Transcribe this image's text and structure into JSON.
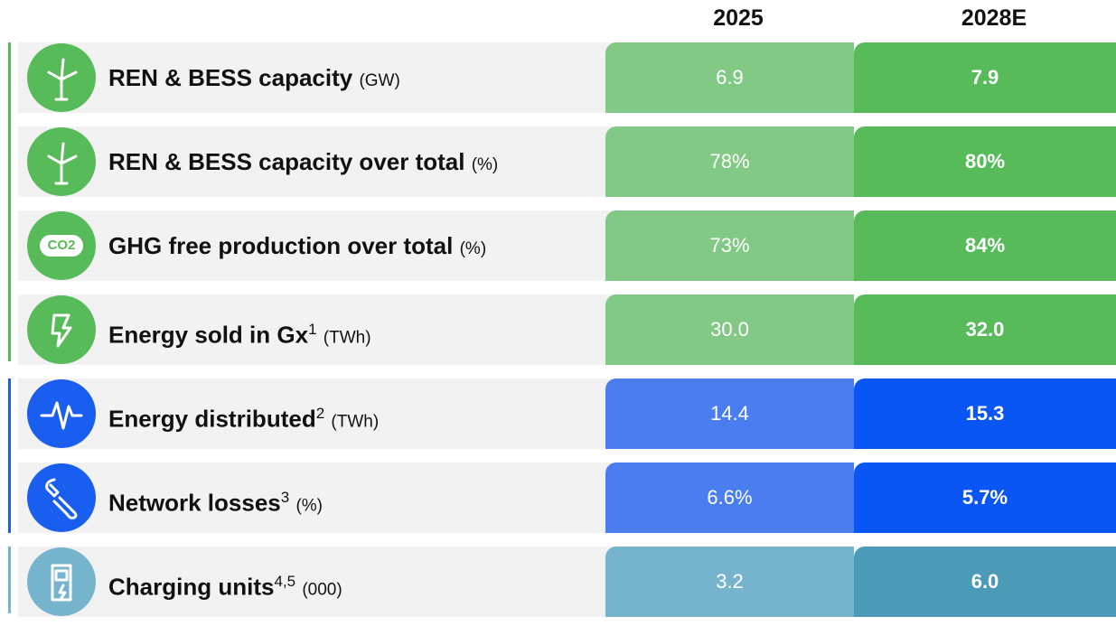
{
  "header": {
    "columns": [
      "2025",
      "2028E"
    ]
  },
  "rows": [
    {
      "label": "REN & BESS capacity",
      "unit": "(GW)",
      "values": [
        "6.9",
        "7.9"
      ]
    },
    {
      "label": "REN & BESS capacity over total",
      "unit": "(%)",
      "values": [
        "78%",
        "80%"
      ]
    },
    {
      "label": "GHG free production over total",
      "unit": "(%)",
      "icon_text": "CO2",
      "values": [
        "73%",
        "84%"
      ]
    },
    {
      "label": "Energy sold in Gx",
      "sup": "1",
      "unit": "(TWh)",
      "values": [
        "30.0",
        "32.0"
      ]
    },
    {
      "label": "Energy distributed",
      "sup": "2",
      "unit": "(TWh)",
      "values": [
        "14.4",
        "15.3"
      ]
    },
    {
      "label": "Network losses",
      "sup": "3",
      "unit": "(%)",
      "values": [
        "6.6%",
        "5.7%"
      ]
    },
    {
      "label": "Charging units",
      "sup": "4,5",
      "unit": "(000)",
      "values": [
        "3.2",
        "6.0"
      ]
    }
  ]
}
